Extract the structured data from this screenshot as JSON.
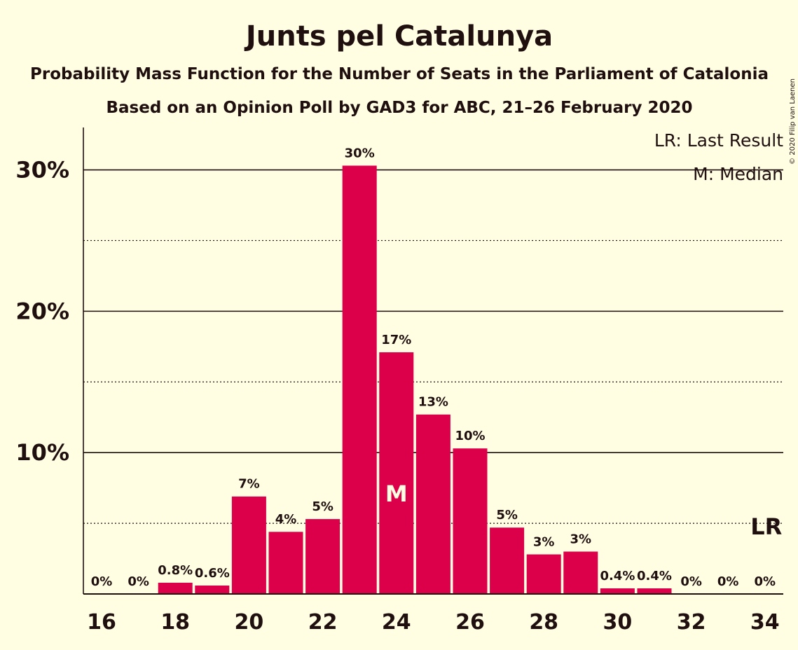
{
  "chart_data": {
    "type": "bar",
    "title": "Junts pel Catalunya",
    "subtitle": "Probability Mass Function for the Number of Seats in the Parliament of Catalonia",
    "subtitle2": "Based on an Opinion Poll by GAD3 for ABC, 21–26 February 2020",
    "credit": "© 2020 Filip van Laenen",
    "x": [
      16,
      17,
      18,
      19,
      20,
      21,
      22,
      23,
      24,
      25,
      26,
      27,
      28,
      29,
      30,
      31,
      32,
      33,
      34
    ],
    "values": [
      0,
      0,
      0.8,
      0.6,
      6.9,
      4.4,
      5.3,
      30.3,
      17.1,
      12.7,
      10.3,
      4.7,
      2.8,
      3.0,
      0.4,
      0.4,
      0,
      0,
      0
    ],
    "data_labels": [
      "0%",
      "0%",
      "0.8%",
      "0.6%",
      "7%",
      "4%",
      "5%",
      "30%",
      "17%",
      "13%",
      "10%",
      "5%",
      "3%",
      "3%",
      "0.4%",
      "0.4%",
      "0%",
      "0%",
      "0%"
    ],
    "x_tick_labels": [
      "16",
      "18",
      "20",
      "22",
      "24",
      "26",
      "28",
      "30",
      "32",
      "34"
    ],
    "x_tick_values": [
      16,
      18,
      20,
      22,
      24,
      26,
      28,
      30,
      32,
      34
    ],
    "y_tick_labels": [
      "10%",
      "20%",
      "30%"
    ],
    "y_tick_values": [
      10,
      20,
      30
    ],
    "y_dotted_values": [
      5,
      15,
      25
    ],
    "ylim": [
      0,
      33
    ],
    "median": {
      "x": 24,
      "label": "M"
    },
    "last_result": {
      "x": 34,
      "label": "LR"
    },
    "legend": [
      "LR: Last Result",
      "M: Median"
    ],
    "legend_position": "top-right",
    "colors": {
      "bar": "#dc004b",
      "background": "#fffde2",
      "text": "#1f0f0f"
    }
  }
}
